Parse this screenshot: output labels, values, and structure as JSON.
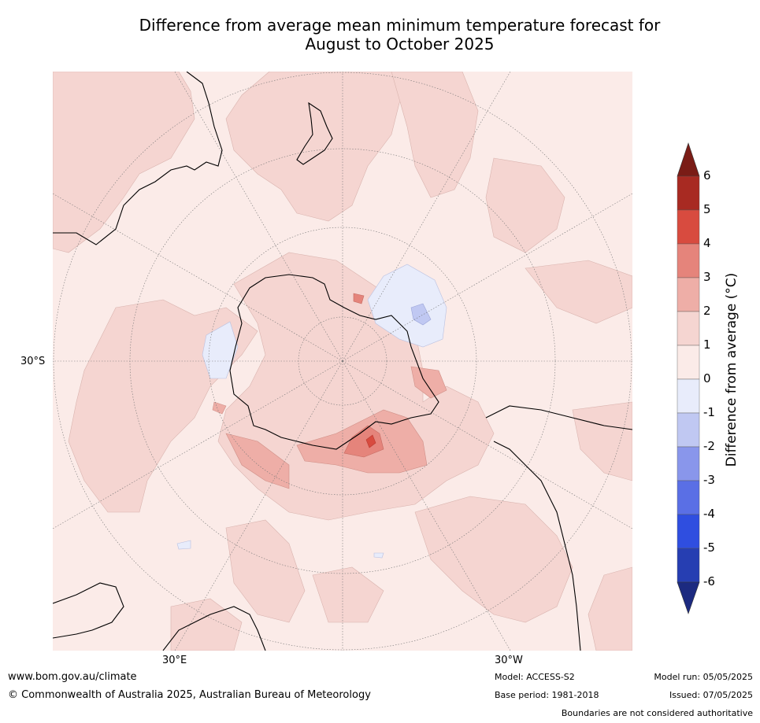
{
  "title_line1": "Difference from average mean minimum temperature forecast for",
  "title_line2": "August to October 2025",
  "map_labels": {
    "lat_30s": "30°S",
    "lon_30e": "30°E",
    "lon_30w": "30°W"
  },
  "colorbar": {
    "title": "Difference from average (°C)",
    "ticks": [
      "6",
      "5",
      "4",
      "3",
      "2",
      "1",
      "0",
      "-1",
      "-2",
      "-3",
      "-4",
      "-5",
      "-6"
    ],
    "colors": [
      "#7a1c16",
      "#a82a22",
      "#d84b3f",
      "#e5847b",
      "#eeaea7",
      "#f5d5d1",
      "#fbebe8",
      "#e8ecfb",
      "#c0c8f2",
      "#8996eb",
      "#5a6fe5",
      "#2f4ee0",
      "#263eb2",
      "#1c2a80"
    ]
  },
  "footer": {
    "url": "www.bom.gov.au/climate",
    "copyright": "© Commonwealth of Australia 2025, Australian Bureau of Meteorology",
    "model": "Model: ACCESS-S2",
    "base_period": "Base period: 1981-2018",
    "model_run": "Model run: 05/05/2025",
    "issued": "Issued: 07/05/2025",
    "disclaimer": "Boundaries are not considered authoritative"
  }
}
